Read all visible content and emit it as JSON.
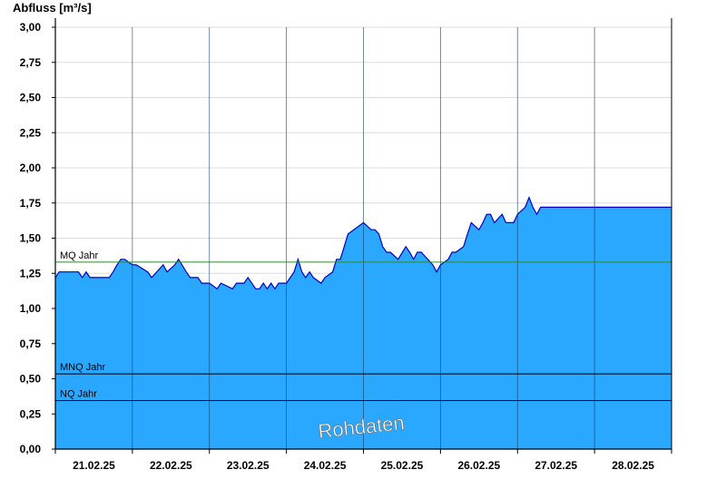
{
  "chart_data": {
    "type": "area",
    "ylabel": "Abfluss [m³/s]",
    "xlabel": "",
    "ylim": [
      0,
      3.0
    ],
    "y_ticks": [
      "0,00",
      "0,25",
      "0,50",
      "0,75",
      "1,00",
      "1,25",
      "1,50",
      "1,75",
      "2,00",
      "2,25",
      "2,50",
      "2,75",
      "3,00"
    ],
    "x_tick_labels": [
      "21.02.25",
      "22.02.25",
      "23.02.25",
      "24.02.25",
      "25.02.25",
      "26.02.25",
      "27.02.25",
      "28.02.25"
    ],
    "x_range_days": [
      20.0,
      28.0
    ],
    "grid": true,
    "watermark": "Rohdaten",
    "colors": {
      "fill": "#2aa7ff",
      "line": "#0000cc",
      "mq_line": "#2e8b2e",
      "ref_line": "#000000",
      "grid": "#dcdcdc"
    },
    "reference_lines": [
      {
        "label": "MQ Jahr",
        "value": 1.33
      },
      {
        "label": "MNQ Jahr",
        "value": 0.535
      },
      {
        "label": "NQ Jahr",
        "value": 0.345
      }
    ],
    "series": [
      {
        "x": [
          20.0,
          20.05,
          20.3,
          20.35,
          20.4,
          20.45,
          20.7,
          20.75,
          20.8,
          20.85,
          20.9,
          21.0,
          21.05,
          21.2,
          21.25,
          21.4,
          21.45,
          21.55,
          21.6,
          21.7,
          21.75,
          21.85,
          21.9,
          22.0,
          22.1,
          22.15,
          22.3,
          22.35,
          22.45,
          22.5,
          22.6,
          22.65,
          22.7,
          22.75,
          22.8,
          22.85,
          22.9,
          23.0,
          23.1,
          23.15,
          23.2,
          23.25,
          23.3,
          23.35,
          23.45,
          23.5,
          23.6,
          23.65,
          23.7,
          23.75,
          23.8,
          24.0,
          24.1,
          24.15,
          24.2,
          24.25,
          24.3,
          24.35,
          24.45,
          24.55,
          24.6,
          24.65,
          24.7,
          24.75,
          24.9,
          24.95,
          25.0,
          25.1,
          25.15,
          25.2,
          25.3,
          25.35,
          25.4,
          25.5,
          25.55,
          25.6,
          25.65,
          25.7,
          25.8,
          25.85,
          25.95,
          26.0,
          26.1,
          26.15,
          26.2,
          26.25,
          26.3,
          26.35,
          26.45,
          26.5,
          26.55,
          26.6,
          26.7,
          26.75,
          26.85,
          26.9,
          26.95,
          27.0,
          27.1,
          27.15,
          27.2,
          27.25,
          27.3,
          27.35,
          27.45,
          27.5,
          27.6,
          27.7,
          27.8,
          27.85,
          27.9,
          28.0
        ],
        "y": [
          1.22,
          1.26,
          1.26,
          1.22,
          1.26,
          1.22,
          1.22,
          1.26,
          1.31,
          1.35,
          1.35,
          1.31,
          1.31,
          1.26,
          1.22,
          1.31,
          1.26,
          1.31,
          1.35,
          1.26,
          1.22,
          1.22,
          1.18,
          1.18,
          1.14,
          1.18,
          1.14,
          1.18,
          1.18,
          1.22,
          1.14,
          1.14,
          1.18,
          1.14,
          1.18,
          1.14,
          1.18,
          1.18,
          1.26,
          1.35,
          1.26,
          1.22,
          1.26,
          1.22,
          1.18,
          1.22,
          1.26,
          1.35,
          1.35,
          1.44,
          1.53,
          1.61,
          1.56,
          1.56,
          1.53,
          1.44,
          1.4,
          1.4,
          1.35,
          1.44,
          1.4,
          1.35,
          1.4,
          1.4,
          1.31,
          1.26,
          1.31,
          1.35,
          1.4,
          1.4,
          1.44,
          1.53,
          1.61,
          1.56,
          1.61,
          1.67,
          1.67,
          1.61,
          1.67,
          1.61,
          1.61,
          1.67,
          1.72,
          1.79,
          1.72,
          1.67,
          1.72,
          1.72,
          1.72,
          1.72,
          1.72,
          1.72,
          1.72,
          1.72,
          1.72,
          1.72,
          1.72,
          1.72,
          1.72,
          1.72,
          1.72,
          1.72,
          1.72,
          1.72,
          1.72,
          1.72,
          1.72,
          1.72,
          1.72,
          1.72,
          1.72,
          1.72
        ]
      }
    ]
  }
}
